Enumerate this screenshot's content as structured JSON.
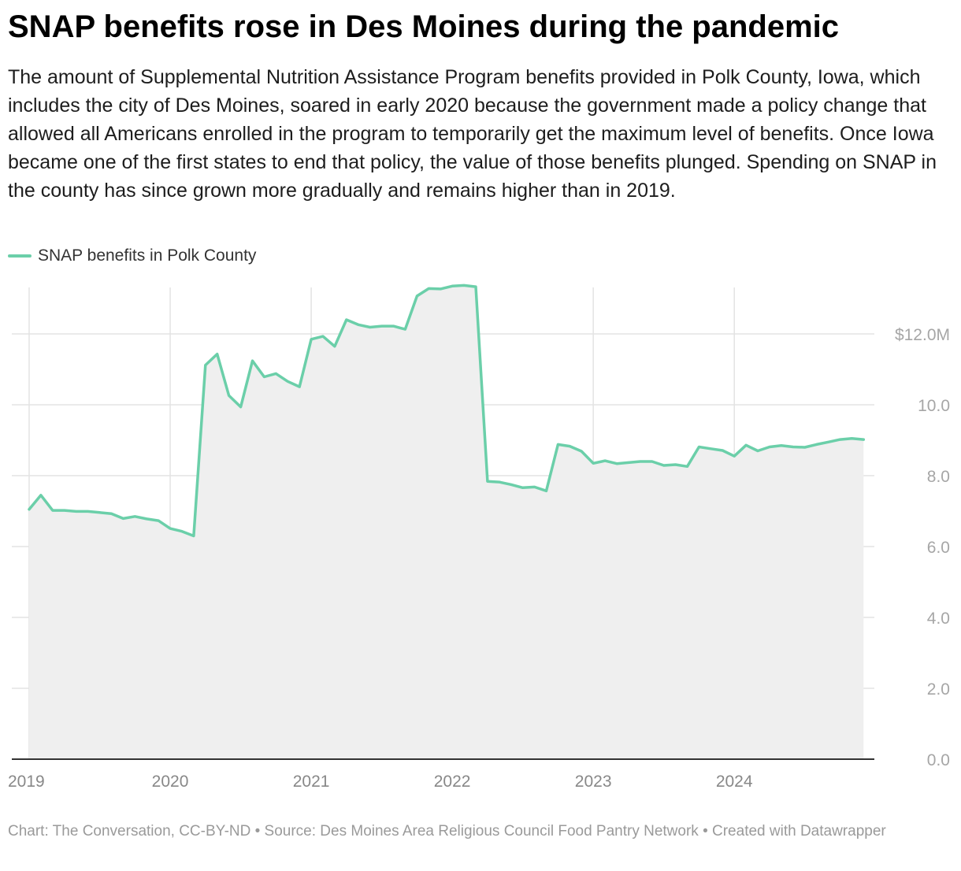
{
  "title": "SNAP benefits rose in Des Moines during the pandemic",
  "description": "The amount of Supplemental Nutrition Assistance Program benefits provided in Polk County, Iowa, which includes the city of Des Moines, soared in early 2020 because the government made a policy change that allowed all Americans enrolled in the program to temporarily get the maximum level of benefits. Once Iowa became one of the first states to end that policy, the value of those benefits plunged. Spending on SNAP in the county has since grown more gradually and remains higher than in 2019.",
  "footer": "Chart: The Conversation, CC-BY-ND • Source: Des Moines Area Religious Council Food Pantry Network • Created with Datawrapper",
  "chart_data": {
    "type": "area",
    "series": [
      {
        "name": "SNAP benefits in Polk County",
        "color": "#6bcfa9",
        "x": [
          "2019-01",
          "2019-02",
          "2019-03",
          "2019-04",
          "2019-05",
          "2019-06",
          "2019-07",
          "2019-08",
          "2019-09",
          "2019-10",
          "2019-11",
          "2019-12",
          "2020-01",
          "2020-02",
          "2020-03",
          "2020-04",
          "2020-05",
          "2020-06",
          "2020-07",
          "2020-08",
          "2020-09",
          "2020-10",
          "2020-11",
          "2020-12",
          "2021-01",
          "2021-02",
          "2021-03",
          "2021-04",
          "2021-05",
          "2021-06",
          "2021-07",
          "2021-08",
          "2021-09",
          "2021-10",
          "2021-11",
          "2021-12",
          "2022-01",
          "2022-02",
          "2022-03",
          "2022-04",
          "2022-05",
          "2022-06",
          "2022-07",
          "2022-08",
          "2022-09",
          "2022-10",
          "2022-11",
          "2022-12",
          "2023-01",
          "2023-02",
          "2023-03",
          "2023-04",
          "2023-05",
          "2023-06",
          "2023-07",
          "2023-08",
          "2023-09",
          "2023-10",
          "2023-11",
          "2023-12",
          "2024-01",
          "2024-02",
          "2024-03",
          "2024-04",
          "2024-05",
          "2024-06",
          "2024-07",
          "2024-08",
          "2024-09",
          "2024-10",
          "2024-11",
          "2024-12"
        ],
        "values": [
          7.05,
          7.45,
          7.02,
          7.02,
          6.99,
          6.99,
          6.96,
          6.93,
          6.79,
          6.85,
          6.78,
          6.73,
          6.51,
          6.43,
          6.3,
          11.12,
          11.43,
          10.26,
          9.94,
          11.24,
          10.79,
          10.88,
          10.66,
          10.51,
          11.85,
          11.93,
          11.65,
          12.4,
          12.26,
          12.19,
          12.22,
          12.22,
          12.13,
          13.07,
          13.28,
          13.27,
          13.35,
          13.37,
          13.33,
          7.84,
          7.82,
          7.75,
          7.66,
          7.68,
          7.57,
          8.88,
          8.83,
          8.69,
          8.35,
          8.42,
          8.34,
          8.37,
          8.4,
          8.4,
          8.29,
          8.31,
          8.26,
          8.81,
          8.76,
          8.71,
          8.55,
          8.86,
          8.7,
          8.81,
          8.85,
          8.81,
          8.8,
          8.88,
          8.95,
          9.02,
          9.05,
          9.02
        ]
      }
    ],
    "x_ticks": [
      "2019",
      "2020",
      "2021",
      "2022",
      "2023",
      "2024"
    ],
    "y_ticks": [
      "0.0",
      "2.0",
      "4.0",
      "6.0",
      "8.0",
      "10.0",
      "$12.0M"
    ],
    "ylim": [
      0,
      13.4
    ],
    "xlabel": "",
    "ylabel": "",
    "grid": true,
    "legend_position": "top-left",
    "area_fill": "#efefef"
  }
}
